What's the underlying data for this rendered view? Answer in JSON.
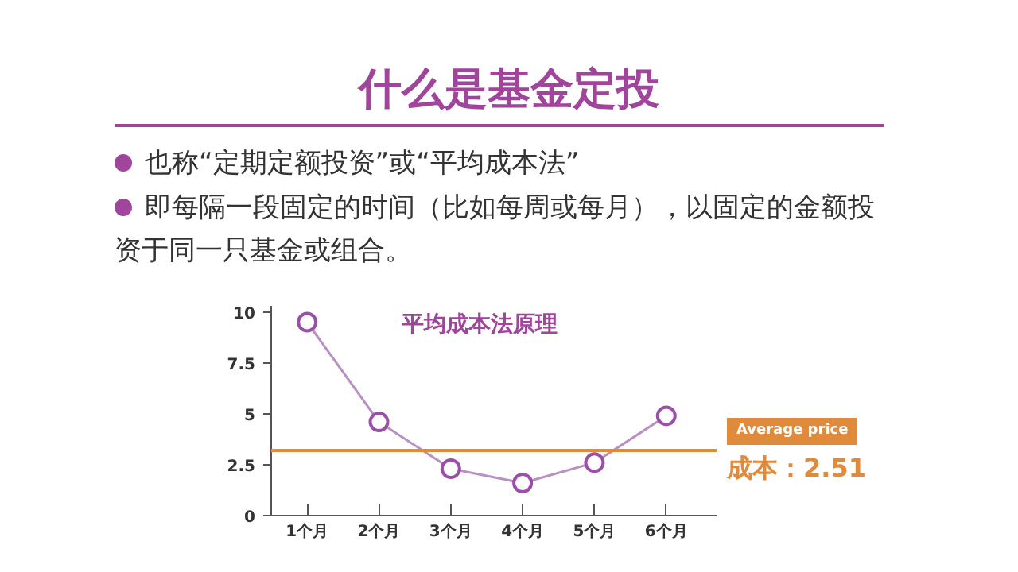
{
  "chart_data": {
    "type": "line",
    "title": "平均成本法原理",
    "annotations": [
      "什么是基金定投",
      "也称“定期定额投资”或“平均成本法”",
      "即每隔一段固定的时间（比如每周或每月），以固定的金额投资于同一只基金或组合。",
      "成本：2.51"
    ],
    "categories": [
      "1个月",
      "2个月",
      "3个月",
      "4个月",
      "5个月",
      "6个月"
    ],
    "series": [
      {
        "color": "#9b4fa8",
        "values": [
          9.5,
          4.6,
          2.3,
          1.6,
          2.6,
          4.9
        ]
      }
    ],
    "ylim": [
      0,
      10.3
    ],
    "yticks": [
      0,
      2.5,
      5,
      7.5,
      10
    ],
    "ref_lines": [
      {
        "axis": "y",
        "value": 3.2,
        "label": "Average price",
        "color": "#e08a3c"
      }
    ],
    "marker": "circle",
    "line_style": "solid",
    "grid": false
  }
}
